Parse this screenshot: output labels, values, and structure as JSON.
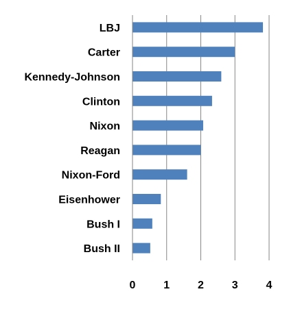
{
  "chart_data": {
    "type": "bar",
    "orientation": "horizontal",
    "categories": [
      "LBJ",
      "Carter",
      "Kennedy-Johnson",
      "Clinton",
      "Nixon",
      "Reagan",
      "Nixon-Ford",
      "Eisenhower",
      "Bush I",
      "Bush II"
    ],
    "values": [
      3.82,
      3.0,
      2.6,
      2.33,
      2.07,
      2.0,
      1.6,
      0.83,
      0.58,
      0.52
    ],
    "xlim": [
      0,
      4
    ],
    "x_ticks": [
      "0",
      "1",
      "2",
      "3",
      "4"
    ],
    "grid": "vertical",
    "bar_color": "#4F81BD",
    "title": "",
    "xlabel": "",
    "ylabel": ""
  }
}
